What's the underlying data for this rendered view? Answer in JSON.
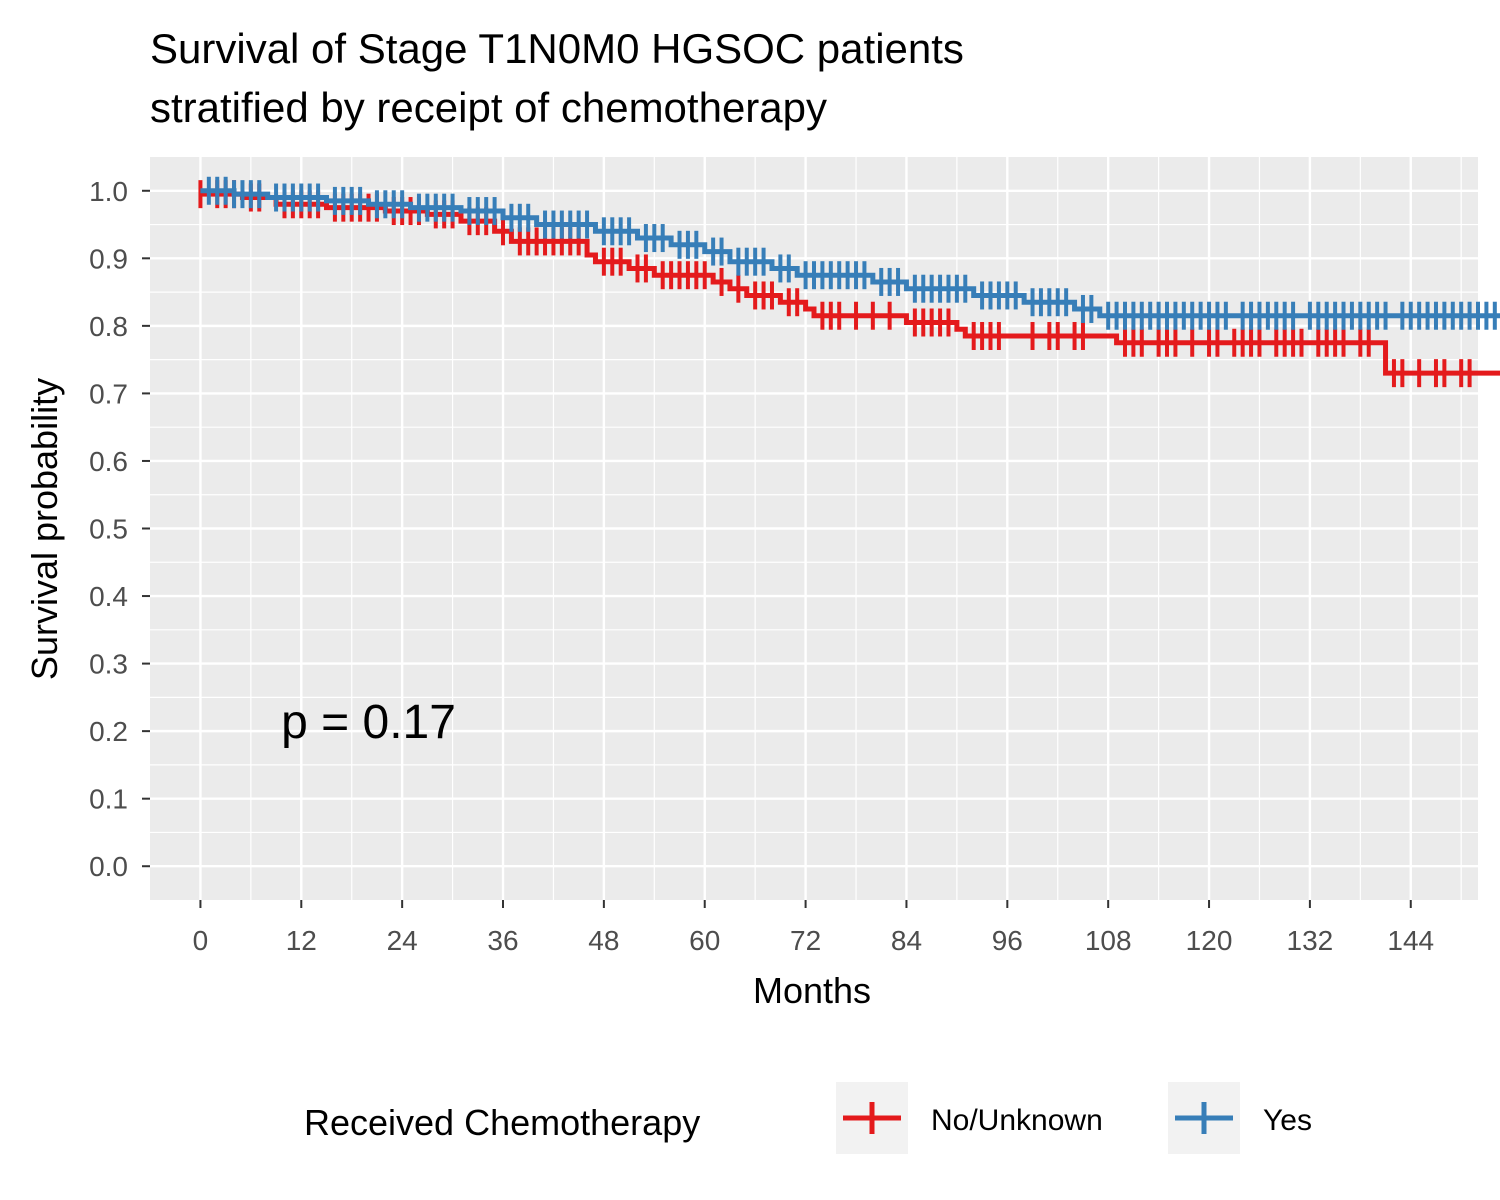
{
  "chart_data": {
    "type": "line",
    "subtype": "kaplan-meier step curve with censor marks",
    "title_lines": [
      "Survival of Stage T1N0M0 HGSOC patients",
      "stratified by receipt of chemotherapy"
    ],
    "xlabel": "Months",
    "ylabel": "Survival probability",
    "xlim": [
      -6,
      152
    ],
    "ylim": [
      -0.05,
      1.05
    ],
    "x_ticks": [
      0,
      12,
      24,
      36,
      48,
      60,
      72,
      84,
      96,
      108,
      120,
      132,
      144
    ],
    "x_tick_labels": [
      "0",
      "12",
      "24",
      "36",
      "48",
      "60",
      "72",
      "84",
      "96",
      "108",
      "120",
      "132",
      "144"
    ],
    "y_ticks": [
      0,
      0.1,
      0.2,
      0.3,
      0.4,
      0.5,
      0.6,
      0.7,
      0.8,
      0.9,
      1.0
    ],
    "y_tick_labels": [
      "0.0",
      "0.1",
      "0.2",
      "0.3",
      "0.4",
      "0.5",
      "0.6",
      "0.7",
      "0.8",
      "0.9",
      "1.0"
    ],
    "grid": true,
    "annotation": {
      "text": "p = 0.17",
      "x": 20,
      "y": 0.19
    },
    "legend": {
      "title": "Received Chemotherapy",
      "position": "bottom"
    },
    "series": [
      {
        "name": "No/Unknown",
        "color": "#E41A1C",
        "steps": [
          [
            0,
            0.995
          ],
          [
            5,
            0.99
          ],
          [
            9,
            0.98
          ],
          [
            15,
            0.975
          ],
          [
            22,
            0.97
          ],
          [
            27,
            0.965
          ],
          [
            31,
            0.955
          ],
          [
            35,
            0.94
          ],
          [
            37,
            0.925
          ],
          [
            46,
            0.905
          ],
          [
            47,
            0.895
          ],
          [
            51,
            0.885
          ],
          [
            54,
            0.875
          ],
          [
            61,
            0.865
          ],
          [
            63,
            0.855
          ],
          [
            65,
            0.845
          ],
          [
            69,
            0.835
          ],
          [
            72,
            0.825
          ],
          [
            73,
            0.815
          ],
          [
            77,
            0.815
          ],
          [
            84,
            0.805
          ],
          [
            90,
            0.795
          ],
          [
            91,
            0.785
          ],
          [
            109,
            0.775
          ],
          [
            141,
            0.73
          ],
          [
            155,
            0.73
          ]
        ],
        "censor_x": [
          0,
          2,
          3,
          4,
          6,
          7,
          10,
          11,
          12,
          13,
          14,
          16,
          17,
          18,
          19,
          20,
          21,
          23,
          24,
          25,
          26,
          28,
          29,
          30,
          32,
          33,
          34,
          36,
          38,
          39,
          40,
          41,
          42,
          43,
          44,
          45,
          48,
          49,
          50,
          52,
          53,
          55,
          56,
          57,
          58,
          59,
          60,
          62,
          64,
          66,
          67,
          68,
          70,
          71,
          74,
          75,
          76,
          78,
          80,
          82,
          85,
          86,
          87,
          88,
          89,
          92,
          93,
          94,
          95,
          99,
          101,
          102,
          104,
          105,
          110,
          111,
          112,
          114,
          115,
          116,
          118,
          120,
          121,
          123,
          124,
          125,
          126,
          128,
          129,
          130,
          131,
          133,
          134,
          135,
          136,
          138,
          139,
          142,
          143,
          145,
          147,
          148,
          150,
          151
        ]
      },
      {
        "name": "Yes",
        "color": "#377EB8",
        "steps": [
          [
            0,
            1.0
          ],
          [
            4,
            0.995
          ],
          [
            8,
            0.99
          ],
          [
            15,
            0.985
          ],
          [
            20,
            0.98
          ],
          [
            25,
            0.975
          ],
          [
            31,
            0.97
          ],
          [
            36,
            0.96
          ],
          [
            40,
            0.95
          ],
          [
            47,
            0.94
          ],
          [
            52,
            0.93
          ],
          [
            56,
            0.92
          ],
          [
            60,
            0.91
          ],
          [
            63,
            0.895
          ],
          [
            68,
            0.885
          ],
          [
            71,
            0.875
          ],
          [
            80,
            0.865
          ],
          [
            84,
            0.855
          ],
          [
            92,
            0.845
          ],
          [
            98,
            0.835
          ],
          [
            104,
            0.825
          ],
          [
            107,
            0.815
          ],
          [
            157,
            0.815
          ]
        ],
        "censor_x": [
          1,
          2,
          3,
          4,
          5,
          6,
          7,
          9,
          10,
          11,
          12,
          13,
          14,
          16,
          17,
          18,
          19,
          21,
          22,
          23,
          24,
          26,
          27,
          28,
          29,
          30,
          32,
          33,
          34,
          35,
          37,
          38,
          39,
          41,
          42,
          43,
          44,
          45,
          46,
          48,
          49,
          50,
          51,
          53,
          54,
          55,
          57,
          58,
          59,
          61,
          62,
          64,
          65,
          66,
          67,
          69,
          70,
          72,
          73,
          74,
          75,
          76,
          77,
          78,
          79,
          81,
          82,
          83,
          85,
          86,
          87,
          88,
          89,
          90,
          91,
          93,
          94,
          95,
          96,
          97,
          99,
          100,
          101,
          102,
          103,
          105,
          106,
          108,
          109,
          110,
          111,
          112,
          113,
          114,
          115,
          116,
          117,
          118,
          119,
          120,
          121,
          122,
          124,
          125,
          126,
          127,
          128,
          129,
          130,
          132,
          133,
          134,
          135,
          136,
          137,
          138,
          139,
          140,
          141,
          143,
          144,
          145,
          146,
          147,
          148,
          149,
          150,
          151,
          152,
          153,
          154
        ]
      }
    ]
  }
}
